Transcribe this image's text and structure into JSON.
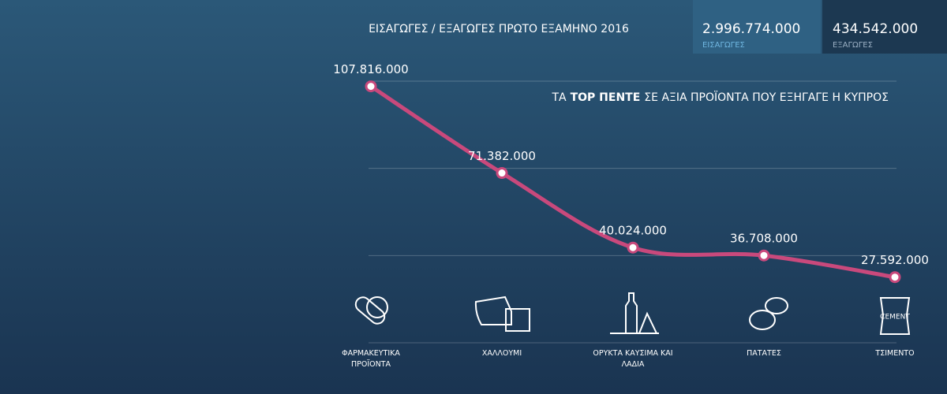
{
  "header": {
    "title": "ΕΙΣΑΓΩΓΕΣ / ΕΞΑΓΩΓΕΣ ΠΡΩΤΟ ΕΞΑΜΗΝΟ 2016",
    "stats": [
      {
        "amount": "2.996.774.000",
        "label": "ΕΙΣΑΓΩΓΕΣ"
      },
      {
        "amount": "434.542.000",
        "label": "ΕΞΑΓΩΓΕΣ"
      }
    ]
  },
  "chart_data": {
    "type": "line",
    "subtitle": [
      "ΤΑ",
      "TOP ΠΕΝΤΕ",
      "ΣΕ ΑΞΙΑ ΠΡΟΪΟΝΤΑ ΠΟΥ ΕΞΗΓΑΓΕ Η ΚΥΠΡΟΣ"
    ],
    "categories": [
      "ΦΑΡΜΑΚΕΥΤΙΚΑ ΠΡΟΪΟΝΤΑ",
      "ΧΑΛΛΟΥΜΙ",
      "ΟΡΥΚΤΑ ΚΑΥΣΙΜΑ ΚΑΙ ΛΑΔΙΑ",
      "ΠΑΤΑΤΕΣ",
      "ΤΣΙΜΕΝΤΟ"
    ],
    "values": [
      107816000,
      71382000,
      40024000,
      36708000,
      27592000
    ],
    "value_labels": [
      "107.816.000",
      "71.382.000",
      "40.024.000",
      "36.708.000",
      "27.592.000"
    ],
    "color": "#c9497c",
    "ylim": [
      0,
      110000000
    ],
    "grid": true
  }
}
